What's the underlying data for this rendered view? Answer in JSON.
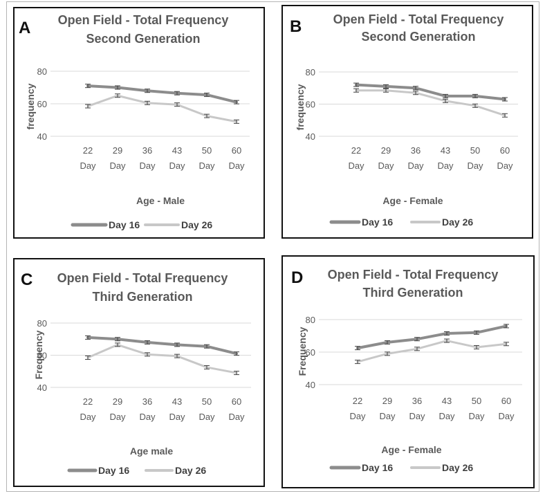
{
  "colors": {
    "day16": "#8c8c8c",
    "day26": "#c8c8c8",
    "grid": "#d9d9d9",
    "text": "#595959"
  },
  "chart_data": [
    {
      "panel": "A",
      "type": "line",
      "title_line1": "Open Field - Total Frequency",
      "title_line2": "Second Generation",
      "categories": [
        [
          "22",
          "Day"
        ],
        [
          "29",
          "Day"
        ],
        [
          "36",
          "Day"
        ],
        [
          "43",
          "Day"
        ],
        [
          "50",
          "Day"
        ],
        [
          "60",
          "Day"
        ]
      ],
      "yticks": [
        "40",
        "60",
        "80"
      ],
      "ylim": [
        40,
        80
      ],
      "xlabel": "Age - Male",
      "ylabel": "frequency",
      "series": [
        {
          "name": "Day 16",
          "values": [
            71,
            70,
            68,
            66.5,
            65.5,
            61
          ]
        },
        {
          "name": "Day 26",
          "values": [
            58.5,
            65,
            60.5,
            59.5,
            52.5,
            49
          ]
        }
      ]
    },
    {
      "panel": "B",
      "type": "line",
      "title_line1": "Open Field - Total Frequency",
      "title_line2": "Second Generation",
      "categories": [
        [
          "22",
          "Day"
        ],
        [
          "29",
          "Day"
        ],
        [
          "36",
          "Day"
        ],
        [
          "43",
          "Day"
        ],
        [
          "50",
          "Day"
        ],
        [
          "60",
          "Day"
        ]
      ],
      "yticks": [
        "40",
        "60",
        "80"
      ],
      "ylim": [
        40,
        80
      ],
      "xlabel": "Age - Female",
      "ylabel": "frequency",
      "series": [
        {
          "name": "Day 16",
          "values": [
            72,
            71,
            70,
            65,
            65,
            63
          ]
        },
        {
          "name": "Day 26",
          "values": [
            68.5,
            68.5,
            67,
            62,
            59,
            53
          ]
        }
      ]
    },
    {
      "panel": "C",
      "type": "line",
      "title_line1": "Open Field - Total Frequency",
      "title_line2": "Third Generation",
      "categories": [
        [
          "22",
          "Day"
        ],
        [
          "29",
          "Day"
        ],
        [
          "36",
          "Day"
        ],
        [
          "43",
          "Day"
        ],
        [
          "50",
          "Day"
        ],
        [
          "60",
          "Day"
        ]
      ],
      "yticks": [
        "40",
        "60",
        "80"
      ],
      "ylim": [
        40,
        80
      ],
      "xlabel": "Age male",
      "ylabel": "Frequency",
      "series": [
        {
          "name": "Day 16",
          "values": [
            71,
            70,
            68,
            66.5,
            65.5,
            61
          ]
        },
        {
          "name": "Day 26",
          "values": [
            58.5,
            66.5,
            60.5,
            59.5,
            52.5,
            49
          ]
        }
      ]
    },
    {
      "panel": "D",
      "type": "line",
      "title_line1": "Open Field - Total Frequency",
      "title_line2": "Third Generation",
      "categories": [
        [
          "22",
          "Day"
        ],
        [
          "29",
          "Day"
        ],
        [
          "36",
          "Day"
        ],
        [
          "43",
          "Day"
        ],
        [
          "50",
          "Day"
        ],
        [
          "60",
          "Day"
        ]
      ],
      "yticks": [
        "40",
        "60",
        "80"
      ],
      "ylim": [
        40,
        80
      ],
      "xlabel": "Age - Female",
      "ylabel": "Frequency",
      "series": [
        {
          "name": "Day 16",
          "values": [
            62.5,
            66,
            68,
            71.5,
            72,
            76
          ]
        },
        {
          "name": "Day 26",
          "values": [
            54,
            59,
            62,
            67,
            63,
            65
          ]
        }
      ]
    }
  ]
}
